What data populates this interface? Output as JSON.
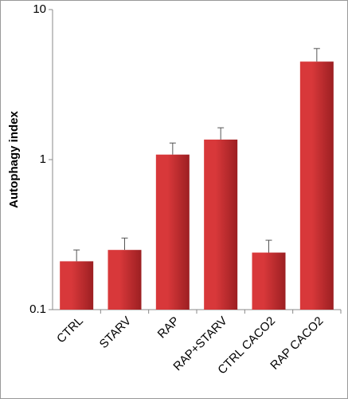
{
  "chart_data": {
    "type": "bar",
    "y_label": "Autophagy index",
    "categories": [
      "CTRL",
      "STARV",
      "RAP",
      "RAP+STARV",
      "CTRL CACO2",
      "RAP CACO2"
    ],
    "values": [
      0.21,
      0.25,
      1.08,
      1.36,
      0.24,
      4.5
    ],
    "errors": [
      0.04,
      0.05,
      0.21,
      0.27,
      0.05,
      1.0
    ],
    "color": "#d8383a",
    "y_scale": "log",
    "ylim": [
      0.1,
      10
    ],
    "yticks": [
      0.1,
      1,
      10
    ]
  }
}
